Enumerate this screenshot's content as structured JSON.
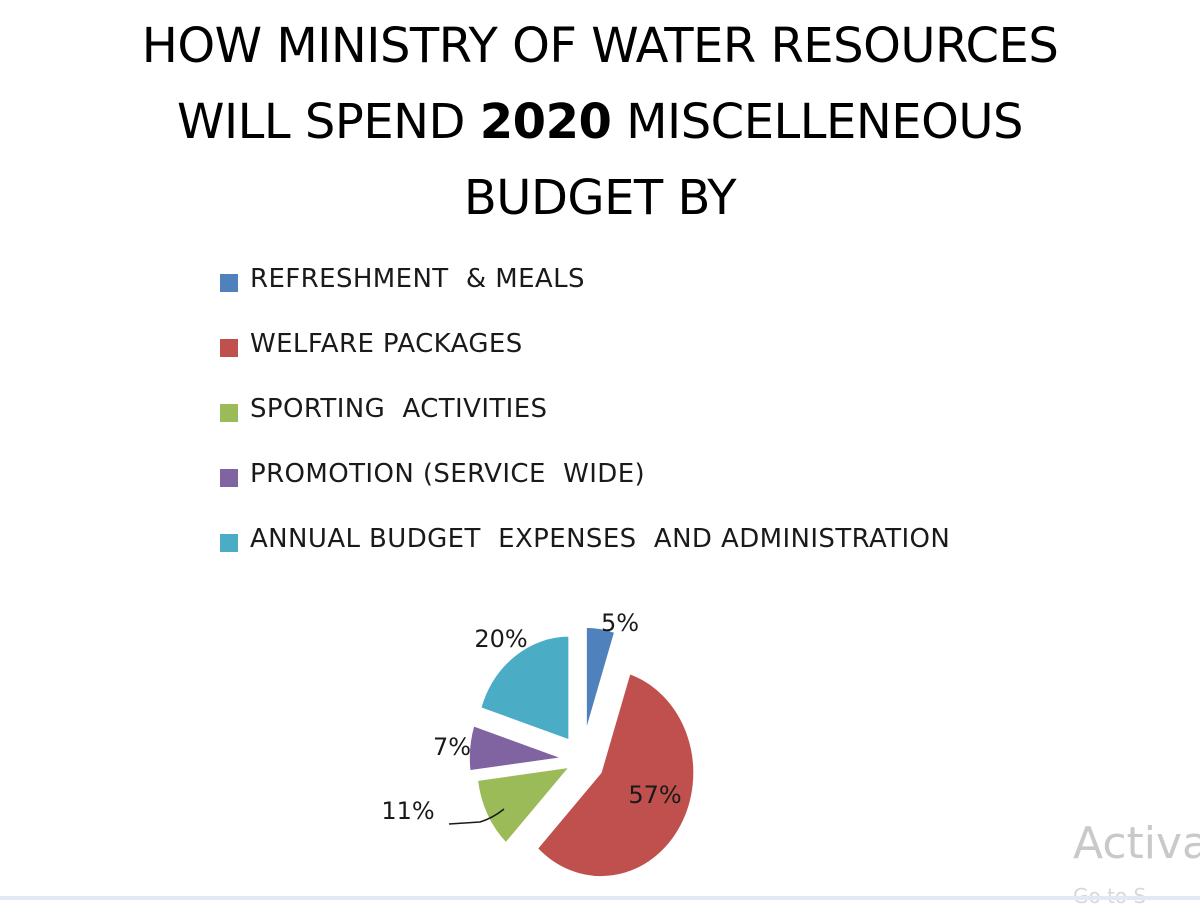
{
  "title": {
    "line1": "HOW MINISTRY OF WATER RESOURCES",
    "line2_pre": "WILL SPEND ",
    "line2_year": "2020",
    "line2_post": " MISCELLENEOUS",
    "line3": "BUDGET BY"
  },
  "watermark": {
    "text": "Activa",
    "subtext": "Go to S"
  },
  "chart_data": {
    "type": "pie",
    "title": "HOW MINISTRY OF WATER RESOURCES WILL SPEND 2020 MISCELLENEOUS BUDGET BY",
    "legend_position": "top",
    "exploded": true,
    "start_angle_deg": 0,
    "direction": "clockwise",
    "slices": [
      {
        "label": "REFRESHMENT  & MEALS",
        "value": 5,
        "value_label": "5%",
        "color": "#4f81bd"
      },
      {
        "label": "WELFARE PACKAGES",
        "value": 57,
        "value_label": "57%",
        "color": "#c0504d"
      },
      {
        "label": "SPORTING  ACTIVITIES",
        "value": 11,
        "value_label": "11%",
        "color": "#9bbb59"
      },
      {
        "label": "PROMOTION (SERVICE  WIDE)",
        "value": 7,
        "value_label": "7%",
        "color": "#8064a2"
      },
      {
        "label": "ANNUAL BUDGET  EXPENSES  AND ADMINISTRATION",
        "value": 20,
        "value_label": "20%",
        "color": "#4bacc6"
      }
    ]
  }
}
